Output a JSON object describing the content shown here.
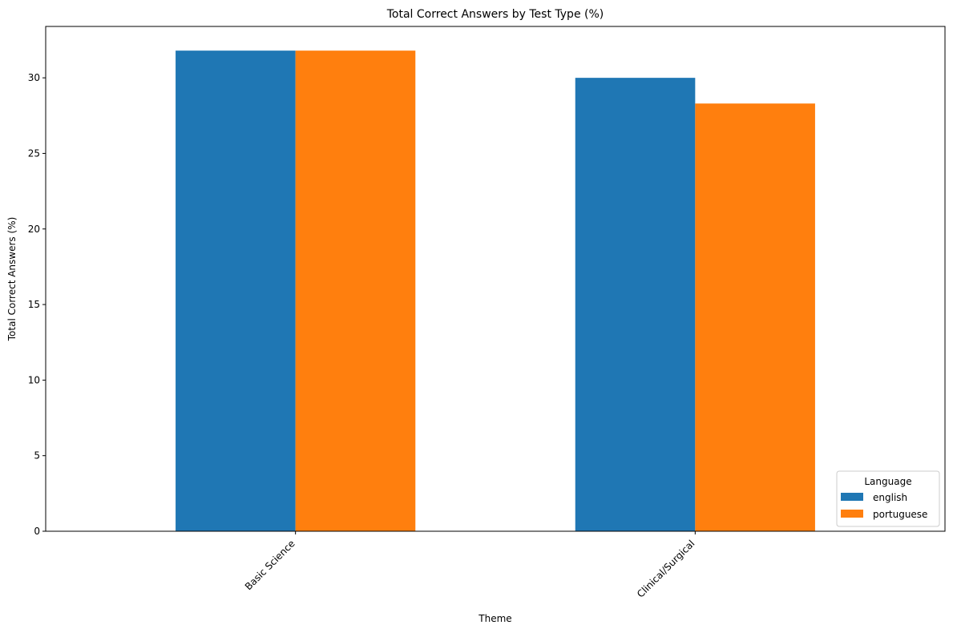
{
  "chart_data": {
    "type": "bar",
    "title": "Total Correct Answers by Test Type (%)",
    "xlabel": "Theme",
    "ylabel": "Total Correct Answers (%)",
    "categories": [
      "Basic Science",
      "Clinical/Surgical"
    ],
    "series": [
      {
        "name": "english",
        "values": [
          31.8,
          30.0
        ],
        "color": "#1f77b4"
      },
      {
        "name": "portuguese",
        "values": [
          31.8,
          28.3
        ],
        "color": "#ff7f0e"
      }
    ],
    "ylim": [
      0,
      33.4
    ],
    "yticks": [
      0,
      5,
      10,
      15,
      20,
      25,
      30
    ],
    "grid": false,
    "legend": {
      "title": "Language",
      "placement": "lower-right"
    }
  }
}
